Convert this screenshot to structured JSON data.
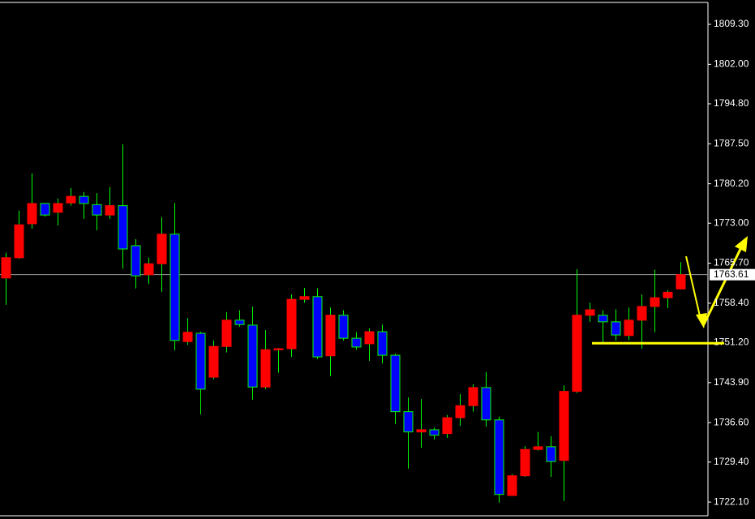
{
  "chart_data": {
    "type": "candlestick",
    "open": [
      1763.0,
      1766.7,
      1772.9,
      1776.6,
      1775.0,
      1776.7,
      1777.9,
      1776.4,
      1774.5,
      1776.2,
      1768.9,
      1763.6,
      1765.6,
      1771.0,
      1751.4,
      1752.9,
      1744.9,
      1750.5,
      1755.3,
      1754.4,
      1743.1,
      1749.9,
      1750.1,
      1759.1,
      1759.6,
      1748.8,
      1756.2,
      1752.0,
      1751.0,
      1753.2,
      1748.9,
      1738.6,
      1734.9,
      1735.3,
      1734.6,
      1737.5,
      1739.7,
      1743.0,
      1737.1,
      1723.3,
      1726.9,
      1731.7,
      1732.2,
      1729.7,
      1742.3,
      1756.2,
      1756.2,
      1755.0,
      1752.5,
      1755.3,
      1757.8,
      1759.4,
      1761.0
    ],
    "high": [
      1767.6,
      1775.3,
      1782.1,
      1776.7,
      1777.5,
      1779.4,
      1778.7,
      1778.5,
      1779.6,
      1787.4,
      1770.1,
      1766.7,
      1774.1,
      1776.7,
      1755.7,
      1753.2,
      1751.6,
      1756.8,
      1757.1,
      1757.8,
      1753.5,
      1750.2,
      1760.0,
      1761.2,
      1761.1,
      1757.6,
      1757.1,
      1753.1,
      1753.8,
      1754.5,
      1749.2,
      1741.2,
      1740.9,
      1735.7,
      1738.0,
      1741.8,
      1743.6,
      1745.8,
      1737.7,
      1727.2,
      1732.3,
      1734.9,
      1734.1,
      1743.4,
      1764.6,
      1758.5,
      1757.1,
      1757.3,
      1757.6,
      1760.0,
      1764.5,
      1760.8,
      1765.9
    ],
    "low": [
      1758.1,
      1766.5,
      1772.0,
      1774.2,
      1772.6,
      1776.2,
      1773.8,
      1771.7,
      1773.8,
      1764.7,
      1761.1,
      1761.9,
      1760.5,
      1749.8,
      1750.8,
      1738.1,
      1744.5,
      1749.4,
      1754.1,
      1740.8,
      1742.7,
      1745.7,
      1748.6,
      1758.5,
      1748.2,
      1745.1,
      1751.6,
      1749.9,
      1747.9,
      1747.4,
      1736.3,
      1728.2,
      1732.0,
      1733.5,
      1733.8,
      1736.0,
      1738.6,
      1735.9,
      1722.0,
      1723.2,
      1726.7,
      1731.5,
      1726.7,
      1722.3,
      1742.0,
      1755.0,
      1751.3,
      1751.6,
      1751.7,
      1750.1,
      1753.1,
      1757.5,
      1760.9
    ],
    "close": [
      1766.7,
      1772.7,
      1776.6,
      1774.5,
      1776.6,
      1777.9,
      1776.6,
      1774.5,
      1776.2,
      1768.3,
      1763.4,
      1765.6,
      1771.0,
      1751.6,
      1753.1,
      1742.7,
      1750.5,
      1755.3,
      1754.5,
      1743.1,
      1749.9,
      1750.1,
      1759.1,
      1759.6,
      1748.6,
      1756.2,
      1752.0,
      1750.4,
      1753.2,
      1748.9,
      1738.6,
      1734.9,
      1735.3,
      1734.3,
      1737.5,
      1739.7,
      1743.0,
      1737.1,
      1723.5,
      1726.9,
      1731.7,
      1732.2,
      1729.5,
      1742.3,
      1756.2,
      1757.2,
      1755.0,
      1752.6,
      1755.3,
      1757.8,
      1759.4,
      1760.4,
      1763.6
    ],
    "up_color": "#ff0000",
    "down_color": "#0000ff",
    "wick_color": "#00ff00",
    "ylim": [
      1719.6,
      1813.3
    ],
    "yticks": [
      {
        "value": 1809.3,
        "label": "1809.30"
      },
      {
        "value": 1802,
        "label": "1802.00"
      },
      {
        "value": 1794.8,
        "label": "1794.80"
      },
      {
        "value": 1787.5,
        "label": "1787.50"
      },
      {
        "value": 1780.2,
        "label": "1780.20"
      },
      {
        "value": 1773,
        "label": "1773.00"
      },
      {
        "value": 1765.7,
        "label": "1765.70"
      },
      {
        "value": 1758.4,
        "label": "1758.40"
      },
      {
        "value": 1751.2,
        "label": "1751.20"
      },
      {
        "value": 1743.9,
        "label": "1743.90"
      },
      {
        "value": 1736.6,
        "label": "1736.60"
      },
      {
        "value": 1729.4,
        "label": "1729.40"
      },
      {
        "value": 1722.1,
        "label": "1722.10"
      }
    ],
    "last_price": {
      "value": 1763.61,
      "label": "1763.61"
    },
    "support_line": {
      "value": 1751.1,
      "color": "#ffff00"
    },
    "grid": false
  }
}
